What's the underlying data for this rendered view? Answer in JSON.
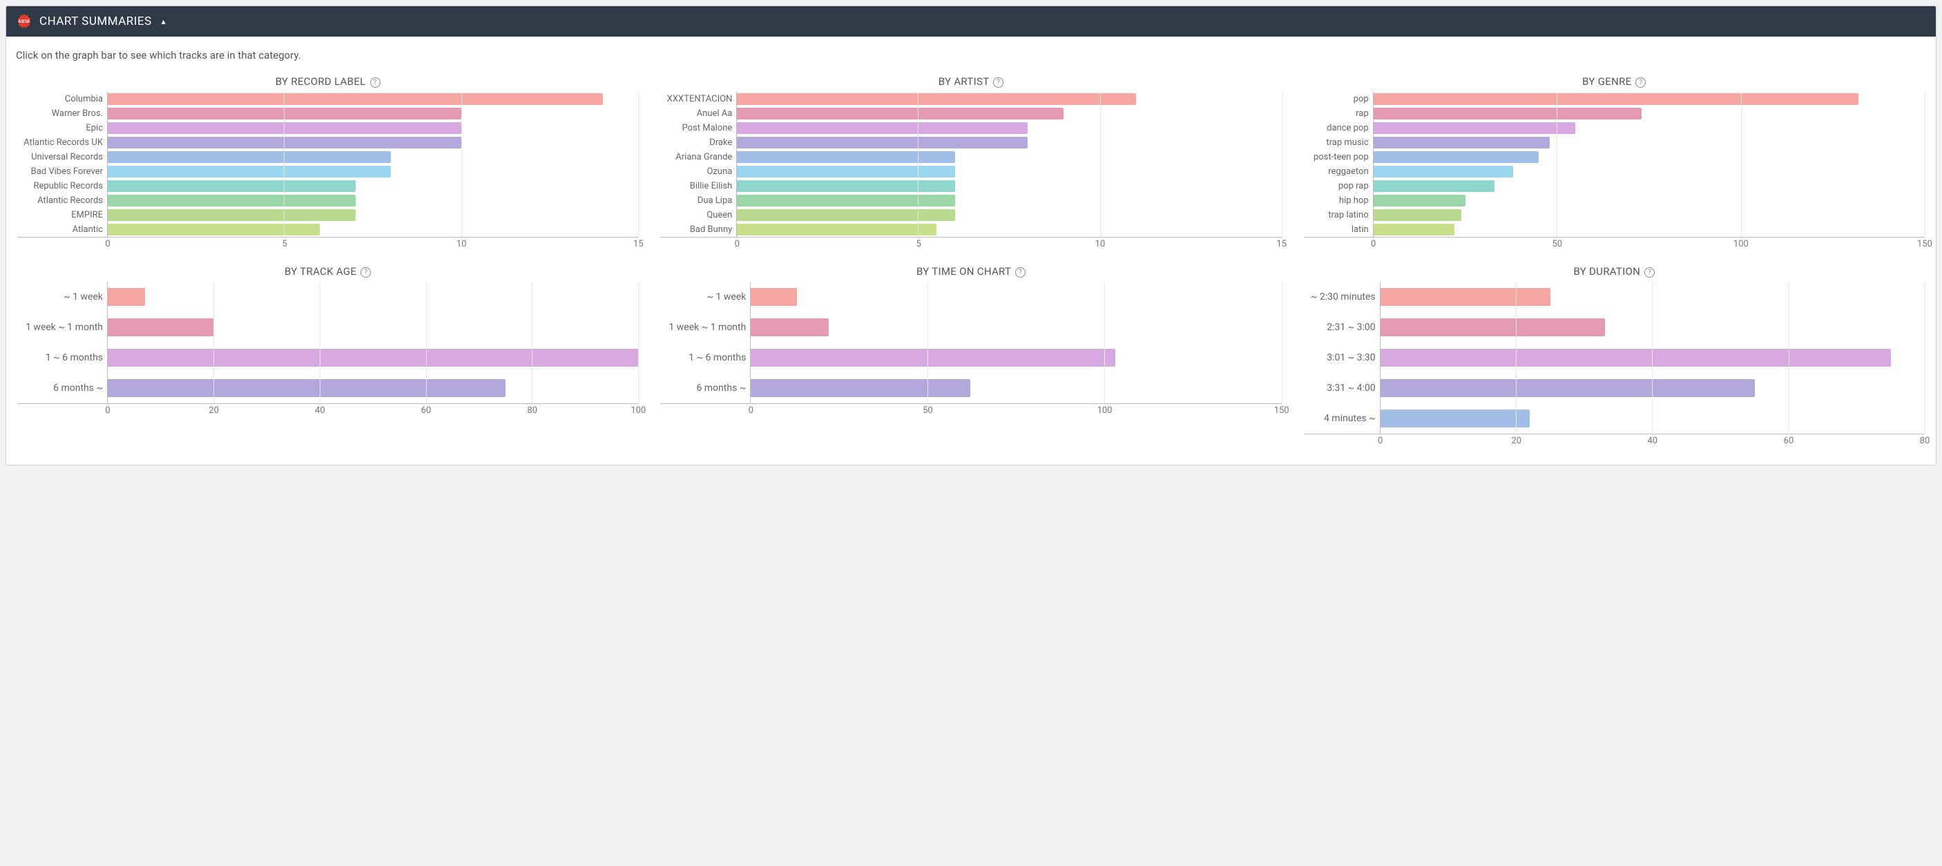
{
  "header": {
    "new_badge_text": "NEW",
    "title": "CHART SUMMARIES",
    "collapse_symbol": "▴"
  },
  "instruction": "Click on the graph bar to see which tracks are in that category.",
  "colors": {
    "panel_header_bg": "#2e3a46",
    "gridline": "#e8e8e8",
    "axis": "#bbbbbb",
    "text_muted": "#666666",
    "palette10": [
      "#f5a6a0",
      "#e49bb1",
      "#d8a8e0",
      "#b3a8dc",
      "#a0bee6",
      "#9ad6ef",
      "#8fd6cc",
      "#9bd6a6",
      "#bada8f",
      "#c7de8a"
    ],
    "palette4": [
      "#f5a6a0",
      "#e49bb1",
      "#d8a8e0",
      "#b3a8dc"
    ],
    "palette5": [
      "#f5a6a0",
      "#e49bb1",
      "#d8a8e0",
      "#b3a8dc",
      "#a0bee6"
    ]
  },
  "layout": {
    "label_width_short": 130,
    "label_width_tall": 130,
    "chart_label_font": 13,
    "title_font": 15
  },
  "charts": [
    {
      "id": "record-label",
      "title": "BY RECORD LABEL",
      "variant": "short",
      "label_width": 130,
      "xmax": 15,
      "xtick_step": 5,
      "palette": "palette10",
      "categories": [
        "Columbia",
        "Warner Bros.",
        "Epic",
        "Atlantic Records UK",
        "Universal Records",
        "Bad Vibes Forever",
        "Republic Records",
        "Atlantic Records",
        "EMPIRE",
        "Atlantic"
      ],
      "values": [
        14,
        10,
        10,
        10,
        8,
        8,
        7,
        7,
        7,
        6
      ]
    },
    {
      "id": "artist",
      "title": "BY ARTIST",
      "variant": "short",
      "label_width": 110,
      "xmax": 15,
      "xtick_step": 5,
      "palette": "palette10",
      "categories": [
        "XXXTENTACION",
        "Anuel Aa",
        "Post Malone",
        "Drake",
        "Ariana Grande",
        "Ozuna",
        "Billie Eilish",
        "Dua Lipa",
        "Queen",
        "Bad Bunny"
      ],
      "values": [
        11,
        9,
        8,
        8,
        6,
        6,
        6,
        6,
        6,
        5.5
      ]
    },
    {
      "id": "genre",
      "title": "BY GENRE",
      "variant": "short",
      "label_width": 100,
      "xmax": 150,
      "xtick_step": 50,
      "palette": "palette10",
      "categories": [
        "pop",
        "rap",
        "dance pop",
        "trap music",
        "post-teen pop",
        "reggaeton",
        "pop rap",
        "hip hop",
        "trap latino",
        "latin"
      ],
      "values": [
        132,
        73,
        55,
        48,
        45,
        38,
        33,
        25,
        24,
        22
      ]
    },
    {
      "id": "track-age",
      "title": "BY TRACK AGE",
      "variant": "tall",
      "label_width": 130,
      "xmax": 100,
      "xtick_step": 20,
      "palette": "palette4",
      "categories": [
        "~ 1 week",
        "1 week ~ 1 month",
        "1 ~ 6 months",
        "6 months ~"
      ],
      "values": [
        7,
        20,
        100,
        75
      ]
    },
    {
      "id": "time-on-chart",
      "title": "BY TIME ON CHART",
      "variant": "tall",
      "label_width": 130,
      "xmax": 150,
      "xtick_step": 50,
      "palette": "palette4",
      "categories": [
        "~ 1 week",
        "1 week ~ 1 month",
        "1 ~ 6 months",
        "6 months ~"
      ],
      "values": [
        13,
        22,
        103,
        62
      ]
    },
    {
      "id": "duration",
      "title": "BY DURATION",
      "variant": "tall",
      "label_width": 110,
      "xmax": 80,
      "xtick_step": 20,
      "palette": "palette5",
      "categories": [
        "~ 2:30 minutes",
        "2:31 ~ 3:00",
        "3:01 ~ 3:30",
        "3:31 ~ 4:00",
        "4 minutes ~"
      ],
      "values": [
        25,
        33,
        75,
        55,
        22
      ]
    }
  ]
}
